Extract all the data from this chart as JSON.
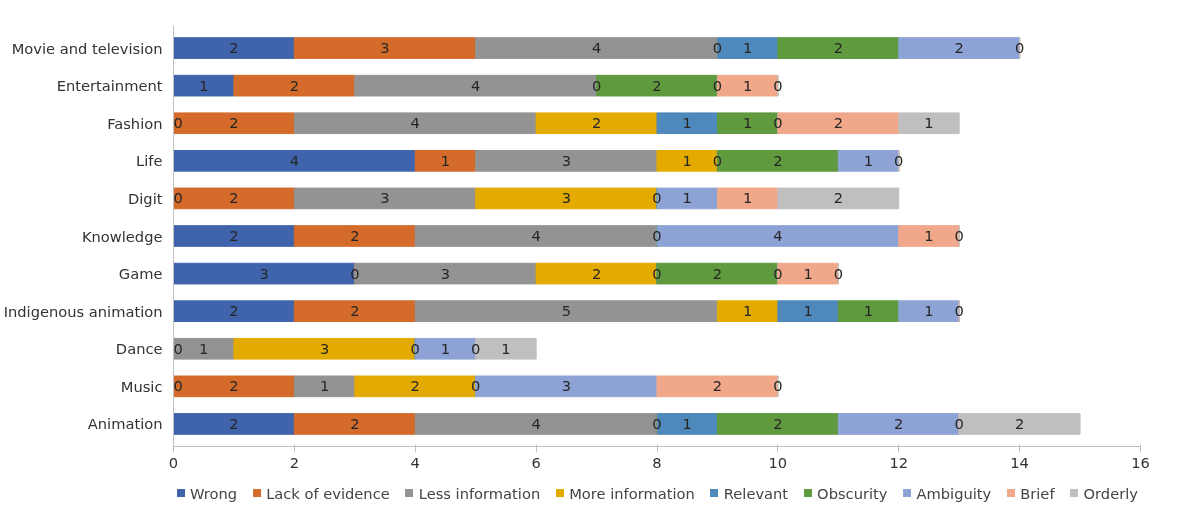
{
  "chart_data": {
    "type": "bar",
    "orientation": "horizontal",
    "stacked": true,
    "grid": false,
    "legend": "bottom",
    "categories": [
      "Movie and television",
      "Entertainment",
      "Fashion",
      "Life",
      "Digit",
      "Knowledge",
      "Game",
      "Indigenous animation",
      "Dance",
      "Music",
      "Animation"
    ],
    "xlim": [
      0,
      16
    ],
    "xticks": [
      0,
      2,
      4,
      6,
      8,
      10,
      12,
      14,
      16
    ],
    "series": [
      {
        "name": "Wrong",
        "color": "#4064ac",
        "values": [
          2,
          1,
          0,
          4,
          0,
          2,
          3,
          2,
          0,
          0,
          2
        ],
        "value_labels": [
          "2",
          "1",
          "0",
          "4",
          "0",
          "2",
          "3",
          "2",
          "0",
          "0",
          "2"
        ]
      },
      {
        "name": "Lack of evidence",
        "color": "#d46b2b",
        "values": [
          3,
          2,
          2,
          1,
          2,
          2,
          0,
          2,
          0,
          2,
          2
        ],
        "value_labels": [
          "3",
          "2",
          "2",
          "1",
          "2",
          "2",
          "0",
          "2",
          null,
          "2",
          "2"
        ]
      },
      {
        "name": "Less information",
        "color": "#939393",
        "values": [
          4,
          4,
          4,
          3,
          3,
          4,
          3,
          5,
          1,
          1,
          4
        ],
        "value_labels": [
          "4",
          "4",
          "4",
          "3",
          "3",
          "4",
          "3",
          "5",
          "1",
          "1",
          "4"
        ]
      },
      {
        "name": "More information",
        "color": "#e3aa00",
        "values": [
          0,
          0,
          2,
          1,
          3,
          0,
          2,
          1,
          3,
          2,
          0
        ],
        "value_labels": [
          "0",
          "0",
          "2",
          "1",
          "3",
          "0",
          "2",
          "1",
          "3",
          "2",
          "0"
        ]
      },
      {
        "name": "Relevant",
        "color": "#4f88bb",
        "values": [
          1,
          0,
          1,
          0,
          0,
          0,
          0,
          1,
          0,
          0,
          1
        ],
        "value_labels": [
          "1",
          null,
          "1",
          "0",
          "0",
          null,
          "0",
          "1",
          "0",
          "0",
          "1"
        ]
      },
      {
        "name": "Obscurity",
        "color": "#5f9a3f",
        "values": [
          2,
          2,
          1,
          2,
          0,
          0,
          2,
          1,
          0,
          0,
          2
        ],
        "value_labels": [
          "2",
          "2",
          "1",
          "2",
          null,
          null,
          "2",
          "1",
          null,
          null,
          "2"
        ]
      },
      {
        "name": "Ambiguity",
        "color": "#8ea3d5",
        "values": [
          2,
          0,
          0,
          1,
          1,
          4,
          0,
          1,
          1,
          3,
          2
        ],
        "value_labels": [
          "2",
          "0",
          "0",
          "1",
          "1",
          "4",
          "0",
          "1",
          "1",
          "3",
          "2"
        ]
      },
      {
        "name": "Brief",
        "color": "#f1a88a",
        "values": [
          0,
          1,
          2,
          0,
          1,
          1,
          1,
          0,
          0,
          2,
          0
        ],
        "value_labels": [
          "0",
          "1",
          "2",
          "0",
          "1",
          "1",
          "1",
          "0",
          "0",
          "2",
          "0"
        ]
      },
      {
        "name": "Orderly",
        "color": "#bfbfbf",
        "values": [
          0,
          0,
          1,
          0,
          2,
          0,
          0,
          0,
          1,
          0,
          2
        ],
        "value_labels": [
          null,
          "0",
          "1",
          null,
          "2",
          "0",
          "0",
          null,
          "1",
          "0",
          "2"
        ]
      }
    ]
  }
}
